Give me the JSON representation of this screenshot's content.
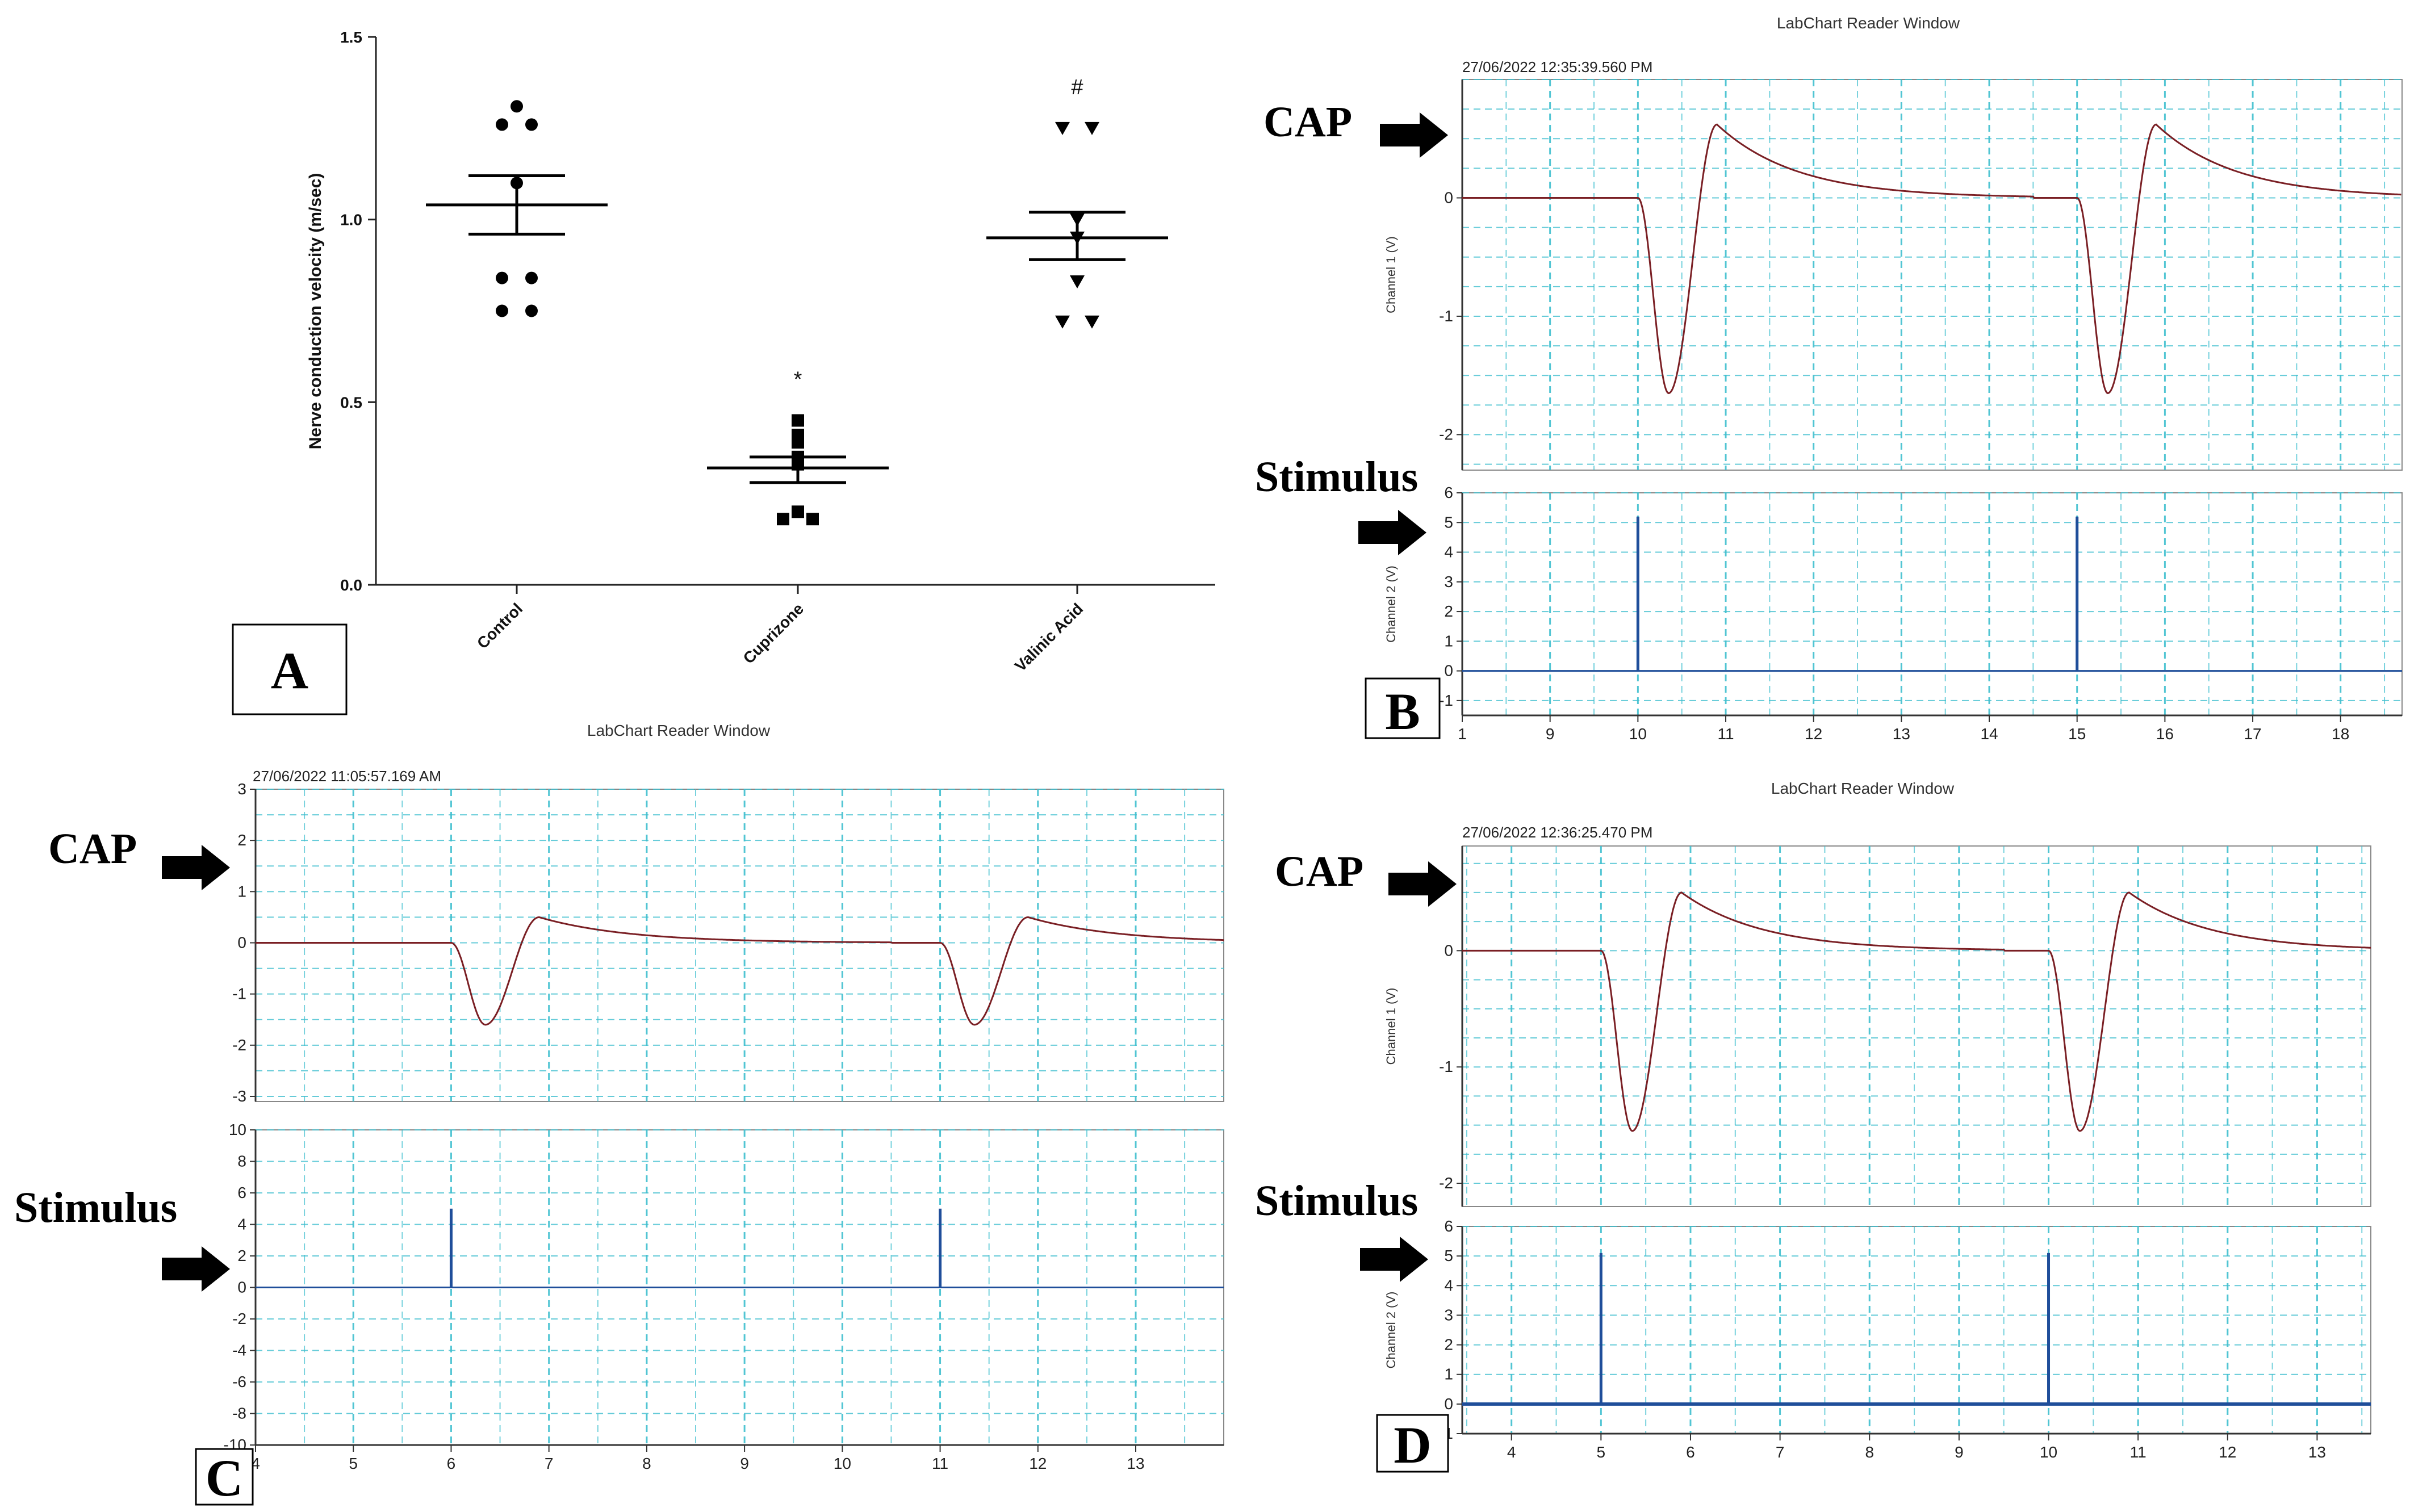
{
  "chart_data": [
    {
      "panel": "A",
      "type": "scatter",
      "ylabel": "Nerve conduction velocity (m/sec)",
      "ylim": [
        0.0,
        1.5
      ],
      "yticks": [
        "0.0",
        "0.5",
        "1.0",
        "1.5"
      ],
      "categories": [
        "Control",
        "Cuprizone",
        "Valinic Acid"
      ],
      "groups": [
        {
          "name": "Control",
          "marker": "circle",
          "values": [
            1.31,
            1.26,
            1.26,
            1.1,
            0.84,
            0.84,
            0.75,
            0.75
          ],
          "mean": 1.04,
          "sem_low": 0.96,
          "sem_high": 1.12,
          "annotation": ""
        },
        {
          "name": "Cuprizone",
          "marker": "square",
          "values": [
            0.45,
            0.41,
            0.39,
            0.35,
            0.33,
            0.2,
            0.18,
            0.18
          ],
          "mean": 0.32,
          "sem_low": 0.28,
          "sem_high": 0.35,
          "annotation": "*"
        },
        {
          "name": "Valinic Acid",
          "marker": "triangle-down",
          "values": [
            1.25,
            1.25,
            1.0,
            0.95,
            0.83,
            0.72,
            0.72
          ],
          "mean": 0.95,
          "sem_low": 0.89,
          "sem_high": 1.02,
          "annotation": "#"
        }
      ]
    },
    {
      "panel": "B",
      "type": "line",
      "window_title": "LabChart Reader Window",
      "timestamp": "27/06/2022 12:35:39.560 PM",
      "xticks": [
        "1",
        "9",
        "10",
        "11",
        "12",
        "13",
        "14",
        "15",
        "16",
        "17",
        "18"
      ],
      "channel1": {
        "ylabel": "Channel 1 (V)",
        "yticks": [
          "0",
          "-1",
          "-2"
        ],
        "ylim": [
          -2.3,
          1.0
        ]
      },
      "channel2": {
        "ylabel": "Channel 2 (V)",
        "yticks": [
          "6",
          "5",
          "4",
          "3",
          "2",
          "1",
          "0",
          "-1"
        ],
        "ylim": [
          -1.5,
          6.0
        ]
      },
      "cap_series": [
        {
          "t": 10.0,
          "v": 0.0
        },
        {
          "t": 10.35,
          "v": -1.65
        },
        {
          "t": 10.88,
          "v": 0.62
        },
        {
          "t": 15.0,
          "v": 0.0
        },
        {
          "t": 15.35,
          "v": -1.65
        },
        {
          "t": 15.88,
          "v": 0.62
        }
      ],
      "stimulus_spikes": [
        {
          "t": 10.0,
          "v": 5.2
        },
        {
          "t": 15.0,
          "v": 5.2
        }
      ]
    },
    {
      "panel": "C",
      "type": "line",
      "window_title": "LabChart Reader Window",
      "timestamp": "27/06/2022 11:05:57.169 AM",
      "xticks": [
        "4",
        "5",
        "6",
        "7",
        "8",
        "9",
        "10",
        "11",
        "12",
        "13"
      ],
      "channel1": {
        "yticks": [
          "3",
          "2",
          "1",
          "0",
          "-1",
          "-2",
          "-3"
        ],
        "ylim": [
          -3.1,
          3.0
        ]
      },
      "channel2": {
        "yticks": [
          "10",
          "8",
          "6",
          "4",
          "2",
          "0",
          "-2",
          "-4",
          "-6",
          "-8",
          "-10"
        ],
        "ylim": [
          -10,
          10
        ]
      },
      "cap_series": [
        {
          "t": 6.0,
          "v": 0.0
        },
        {
          "t": 6.35,
          "v": -1.6
        },
        {
          "t": 6.85,
          "v": 0.5
        },
        {
          "t": 11.0,
          "v": 0.0
        },
        {
          "t": 11.35,
          "v": -1.55
        },
        {
          "t": 11.85,
          "v": 0.5
        }
      ],
      "stimulus_spikes": [
        {
          "t": 6.0,
          "v": 5.0
        },
        {
          "t": 11.0,
          "v": 5.0
        }
      ]
    },
    {
      "panel": "D",
      "type": "line",
      "window_title": "LabChart Reader Window",
      "timestamp": "27/06/2022 12:36:25.470 PM",
      "xticks": [
        "4",
        "5",
        "6",
        "7",
        "8",
        "9",
        "10",
        "11",
        "12",
        "13"
      ],
      "channel1": {
        "ylabel": "Channel 1 (V)",
        "yticks": [
          "0",
          "-1",
          "-2"
        ],
        "ylim": [
          -2.2,
          0.9
        ]
      },
      "channel2": {
        "ylabel": "Channel 2 (V)",
        "yticks": [
          "6",
          "5",
          "4",
          "3",
          "2",
          "1",
          "0",
          "-1"
        ],
        "ylim": [
          -1.0,
          6.0
        ]
      },
      "cap_series": [
        {
          "t": 5.0,
          "v": 0.0
        },
        {
          "t": 5.35,
          "v": -1.55
        },
        {
          "t": 5.95,
          "v": 0.5
        },
        {
          "t": 10.0,
          "v": 0.0
        },
        {
          "t": 10.35,
          "v": -1.55
        },
        {
          "t": 10.95,
          "v": 0.5
        }
      ],
      "stimulus_spikes": [
        {
          "t": 5.0,
          "v": 5.1
        },
        {
          "t": 10.0,
          "v": 5.1
        }
      ]
    }
  ],
  "annotations": {
    "cap_label": "CAP",
    "stimulus_label": "Stimulus",
    "panel_labels": [
      "A",
      "B",
      "C",
      "D"
    ]
  },
  "colors": {
    "cap_trace": "#7a1f24",
    "stim_trace": "#1f4e9a",
    "grid": "#3fbfcf",
    "axis": "#222222"
  }
}
